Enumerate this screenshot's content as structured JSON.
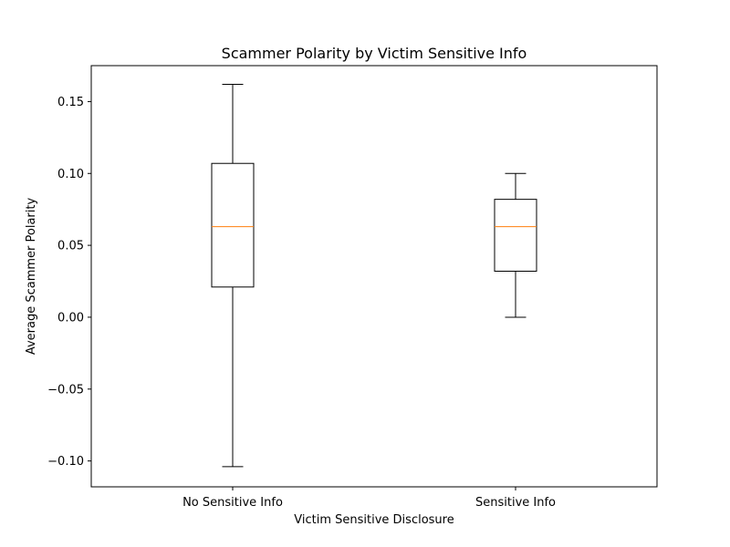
{
  "chart_data": {
    "type": "box",
    "title": "Scammer Polarity by Victim Sensitive Info",
    "xlabel": "Victim Sensitive Disclosure",
    "ylabel": "Average Scammer Polarity",
    "categories": [
      "No Sensitive Info",
      "Sensitive Info"
    ],
    "boxes": [
      {
        "whisker_low": -0.104,
        "q1": 0.021,
        "median": 0.063,
        "q3": 0.107,
        "whisker_high": 0.162
      },
      {
        "whisker_low": 0.0,
        "q1": 0.032,
        "median": 0.063,
        "q3": 0.082,
        "whisker_high": 0.1
      }
    ],
    "ylim": [
      -0.118,
      0.175
    ],
    "yticks": [
      -0.1,
      -0.05,
      0.0,
      0.05,
      0.1,
      0.15
    ],
    "ytick_labels": [
      "−0.10",
      "−0.05",
      "0.00",
      "0.05",
      "0.10",
      "0.15"
    ],
    "grid": false,
    "colors": {
      "box": "#000000",
      "median": "#ff7f0e"
    }
  }
}
